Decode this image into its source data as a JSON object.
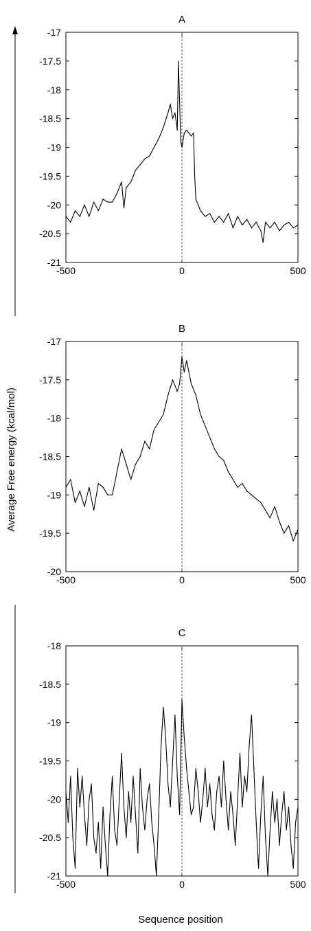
{
  "figure": {
    "ylabel": "Average Free energy (kcal/mol)",
    "xlabel": "Sequence position",
    "line_color": "#000000",
    "marker_line_color": "#555555"
  },
  "chart_data": [
    {
      "type": "line",
      "title": "A",
      "xlim": [
        -500,
        500
      ],
      "ylim": [
        -21,
        -17
      ],
      "xticks": [
        -500,
        0,
        500
      ],
      "yticks": [
        -17,
        -17.5,
        -18,
        -18.5,
        -19,
        -19.5,
        -20,
        -20.5,
        -21
      ],
      "vertical_marker_x": 0,
      "series": [
        {
          "x": [
            -500,
            -480,
            -460,
            -440,
            -420,
            -400,
            -380,
            -360,
            -340,
            -320,
            -300,
            -280,
            -260,
            -250,
            -240,
            -220,
            -200,
            -180,
            -160,
            -140,
            -120,
            -100,
            -80,
            -60,
            -50,
            -40,
            -30,
            -20,
            -15,
            -10,
            -5,
            0,
            10,
            20,
            30,
            40,
            50,
            55,
            60,
            70,
            80,
            100,
            120,
            140,
            160,
            180,
            200,
            220,
            240,
            260,
            280,
            300,
            320,
            340,
            350,
            360,
            380,
            400,
            420,
            440,
            460,
            480,
            500
          ],
          "y": [
            -20.2,
            -20.3,
            -20.1,
            -20.2,
            -20.0,
            -20.2,
            -19.95,
            -20.1,
            -19.9,
            -19.95,
            -19.95,
            -19.8,
            -19.6,
            -20.05,
            -19.7,
            -19.6,
            -19.4,
            -19.3,
            -19.2,
            -19.15,
            -19.0,
            -18.85,
            -18.65,
            -18.4,
            -18.25,
            -18.5,
            -18.4,
            -18.7,
            -17.5,
            -18.2,
            -18.9,
            -19.0,
            -18.75,
            -18.7,
            -18.75,
            -18.8,
            -18.75,
            -19.5,
            -19.9,
            -20.0,
            -20.1,
            -20.2,
            -20.15,
            -20.3,
            -20.2,
            -20.3,
            -20.15,
            -20.4,
            -20.2,
            -20.35,
            -20.25,
            -20.4,
            -20.3,
            -20.45,
            -20.65,
            -20.3,
            -20.4,
            -20.3,
            -20.45,
            -20.35,
            -20.3,
            -20.4,
            -20.35
          ]
        }
      ]
    },
    {
      "type": "line",
      "title": "B",
      "xlim": [
        -500,
        500
      ],
      "ylim": [
        -20,
        -17
      ],
      "xticks": [
        -500,
        0,
        500
      ],
      "yticks": [
        -17,
        -17.5,
        -18,
        -18.5,
        -19,
        -19.5,
        -20
      ],
      "vertical_marker_x": 0,
      "series": [
        {
          "x": [
            -500,
            -480,
            -460,
            -440,
            -420,
            -400,
            -380,
            -360,
            -340,
            -320,
            -300,
            -280,
            -260,
            -240,
            -220,
            -200,
            -180,
            -160,
            -140,
            -120,
            -100,
            -80,
            -60,
            -40,
            -20,
            -10,
            0,
            10,
            20,
            40,
            60,
            80,
            100,
            120,
            140,
            160,
            180,
            200,
            220,
            240,
            260,
            280,
            300,
            320,
            340,
            360,
            380,
            400,
            420,
            440,
            460,
            480,
            500
          ],
          "y": [
            -18.9,
            -18.8,
            -19.1,
            -18.95,
            -19.15,
            -18.9,
            -19.2,
            -18.85,
            -18.9,
            -19.0,
            -19.0,
            -18.7,
            -18.4,
            -18.6,
            -18.8,
            -18.6,
            -18.5,
            -18.3,
            -18.4,
            -18.15,
            -18.05,
            -17.95,
            -17.7,
            -17.5,
            -17.65,
            -17.55,
            -17.2,
            -17.4,
            -17.25,
            -17.55,
            -17.7,
            -17.95,
            -18.1,
            -18.25,
            -18.4,
            -18.5,
            -18.55,
            -18.7,
            -18.8,
            -18.9,
            -18.85,
            -18.95,
            -19.0,
            -19.05,
            -19.1,
            -19.2,
            -19.3,
            -19.15,
            -19.35,
            -19.5,
            -19.4,
            -19.6,
            -19.45
          ]
        }
      ]
    },
    {
      "type": "line",
      "title": "C",
      "xlim": [
        -500,
        500
      ],
      "ylim": [
        -21,
        -18
      ],
      "xticks": [
        -500,
        0,
        500
      ],
      "yticks": [
        -18,
        -18.5,
        -19,
        -19.5,
        -20,
        -20.5,
        -21
      ],
      "vertical_marker_x": 0,
      "series": [
        {
          "x": [
            -500,
            -490,
            -480,
            -470,
            -460,
            -450,
            -440,
            -430,
            -420,
            -410,
            -400,
            -390,
            -380,
            -370,
            -360,
            -350,
            -340,
            -330,
            -320,
            -310,
            -300,
            -290,
            -280,
            -270,
            -260,
            -250,
            -240,
            -230,
            -220,
            -210,
            -200,
            -190,
            -180,
            -170,
            -160,
            -150,
            -140,
            -130,
            -120,
            -110,
            -100,
            -90,
            -80,
            -70,
            -60,
            -50,
            -40,
            -30,
            -20,
            -10,
            0,
            10,
            20,
            30,
            40,
            50,
            60,
            70,
            80,
            90,
            100,
            110,
            120,
            130,
            140,
            150,
            160,
            170,
            180,
            190,
            200,
            210,
            220,
            230,
            240,
            250,
            260,
            270,
            280,
            290,
            300,
            310,
            320,
            330,
            340,
            350,
            360,
            370,
            380,
            390,
            400,
            410,
            420,
            430,
            440,
            450,
            460,
            470,
            480,
            490,
            500
          ],
          "y": [
            -19.9,
            -20.3,
            -19.7,
            -20.5,
            -20.9,
            -19.6,
            -20.1,
            -19.7,
            -20.2,
            -20.6,
            -20.0,
            -19.8,
            -20.5,
            -20.7,
            -20.3,
            -20.9,
            -20.1,
            -20.6,
            -21.0,
            -20.2,
            -19.7,
            -20.4,
            -20.6,
            -20.0,
            -19.4,
            -20.1,
            -20.5,
            -19.9,
            -20.3,
            -19.7,
            -20.2,
            -20.7,
            -19.6,
            -20.1,
            -20.4,
            -20.0,
            -19.8,
            -20.3,
            -20.6,
            -21.0,
            -20.2,
            -19.3,
            -18.8,
            -19.2,
            -19.8,
            -20.1,
            -19.5,
            -18.9,
            -19.7,
            -20.2,
            -18.7,
            -19.2,
            -19.6,
            -19.9,
            -20.2,
            -20.1,
            -19.6,
            -19.9,
            -20.3,
            -20.0,
            -19.6,
            -20.1,
            -19.8,
            -20.2,
            -20.4,
            -19.9,
            -19.7,
            -20.1,
            -19.5,
            -20.0,
            -20.4,
            -19.9,
            -20.2,
            -20.6,
            -20.0,
            -19.4,
            -20.1,
            -19.7,
            -19.9,
            -19.3,
            -18.9,
            -19.6,
            -20.3,
            -20.9,
            -20.2,
            -19.7,
            -20.5,
            -21.0,
            -20.4,
            -19.9,
            -20.3,
            -20.0,
            -20.6,
            -20.2,
            -19.9,
            -20.4,
            -20.1,
            -20.6,
            -20.9,
            -20.3,
            -20.1
          ]
        }
      ]
    }
  ]
}
